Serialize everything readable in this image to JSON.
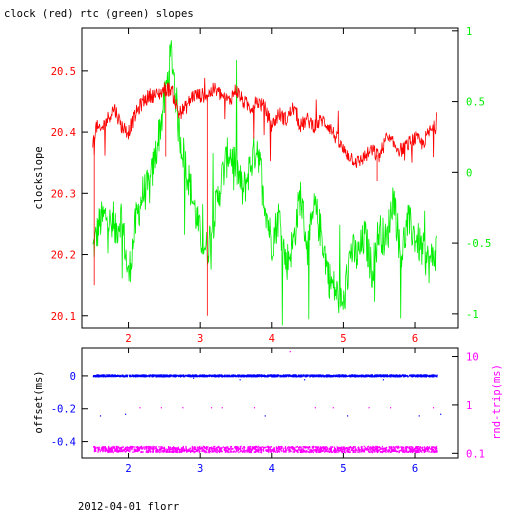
{
  "title": "clock (red) rtc (green) slopes",
  "footer": "2012-04-01 florr",
  "colors": {
    "frame": "#000000",
    "clock": "#ff0000",
    "rtc": "#00ee00",
    "offset": "#0000ff",
    "rndtrip": "#ff00ff"
  },
  "chart_data": [
    {
      "type": "line",
      "ylabel": "clockslope",
      "y2label": "",
      "xlim": [
        1.35,
        6.6
      ],
      "ylim": [
        20.08,
        20.57
      ],
      "y2lim": [
        -1.1,
        1.02
      ],
      "xticks": [
        2,
        3,
        4,
        5,
        6
      ],
      "yticks": [
        20.1,
        20.2,
        20.3,
        20.4,
        20.5
      ],
      "y2ticks": [
        -1,
        -0.5,
        0,
        0.5,
        1
      ],
      "x_tick_labels": [
        "2",
        "3",
        "4",
        "5",
        "6"
      ],
      "y_tick_labels": [
        "20.1",
        "20.2",
        "20.3",
        "20.4",
        "20.5"
      ],
      "y2_tick_labels": [
        "-1",
        "-0.5",
        "0",
        "0.5",
        "1"
      ],
      "series": [
        {
          "axis": "left",
          "x": [
            1.5,
            1.55,
            1.6,
            1.7,
            1.8,
            1.9,
            2.0,
            2.1,
            2.2,
            2.3,
            2.4,
            2.5,
            2.6,
            2.65,
            2.7,
            2.8,
            2.9,
            3.0,
            3.1,
            3.2,
            3.3,
            3.4,
            3.5,
            3.6,
            3.7,
            3.8,
            3.9,
            4.0,
            4.1,
            4.2,
            4.3,
            4.4,
            4.5,
            4.6,
            4.7,
            4.8,
            4.9,
            5.0,
            5.1,
            5.2,
            5.3,
            5.4,
            5.5,
            5.6,
            5.7,
            5.8,
            5.9,
            6.0,
            6.1,
            6.2,
            6.3
          ],
          "values": [
            20.38,
            20.41,
            20.4,
            20.42,
            20.44,
            20.41,
            20.4,
            20.43,
            20.45,
            20.46,
            20.46,
            20.47,
            20.47,
            20.45,
            20.43,
            20.44,
            20.46,
            20.46,
            20.46,
            20.47,
            20.46,
            20.45,
            20.47,
            20.45,
            20.44,
            20.45,
            20.44,
            20.41,
            20.43,
            20.42,
            20.44,
            20.41,
            20.42,
            20.41,
            20.42,
            20.41,
            20.39,
            20.37,
            20.36,
            20.35,
            20.36,
            20.37,
            20.36,
            20.39,
            20.38,
            20.37,
            20.38,
            20.39,
            20.38,
            20.4,
            20.41
          ]
        },
        {
          "axis": "right",
          "x": [
            1.5,
            1.55,
            1.6,
            1.7,
            1.8,
            1.9,
            2.0,
            2.1,
            2.2,
            2.3,
            2.4,
            2.5,
            2.6,
            2.65,
            2.7,
            2.8,
            2.9,
            3.0,
            3.1,
            3.2,
            3.3,
            3.4,
            3.5,
            3.6,
            3.7,
            3.8,
            3.9,
            4.0,
            4.1,
            4.2,
            4.3,
            4.4,
            4.5,
            4.6,
            4.7,
            4.8,
            4.9,
            5.0,
            5.1,
            5.2,
            5.3,
            5.4,
            5.5,
            5.6,
            5.7,
            5.8,
            5.9,
            6.0,
            6.1,
            6.2,
            6.3
          ],
          "values": [
            -0.55,
            -0.45,
            -0.35,
            -0.3,
            -0.45,
            -0.3,
            -0.75,
            -0.35,
            -0.15,
            -0.1,
            0.2,
            0.5,
            0.85,
            0.6,
            0.3,
            0.05,
            -0.2,
            -0.45,
            -0.55,
            -0.3,
            -0.05,
            0.15,
            0.05,
            -0.15,
            0.05,
            0.2,
            -0.2,
            -0.5,
            -0.3,
            -0.65,
            -0.5,
            -0.15,
            -0.55,
            -0.25,
            -0.45,
            -0.75,
            -0.85,
            -0.95,
            -0.55,
            -0.6,
            -0.45,
            -0.7,
            -0.4,
            -0.5,
            -0.15,
            -0.6,
            -0.35,
            -0.45,
            -0.55,
            -0.65,
            -0.55
          ]
        }
      ]
    },
    {
      "type": "scatter",
      "ylabel": "offset(ms)",
      "y2label": "rnd-trip(ms)",
      "xlim": [
        1.35,
        6.6
      ],
      "ylim": [
        -0.5,
        0.17
      ],
      "y2log": true,
      "y2lim": [
        0.08,
        15
      ],
      "xticks": [
        2,
        3,
        4,
        5,
        6
      ],
      "yticks": [
        -0.4,
        -0.2,
        0
      ],
      "y2ticks": [
        0.1,
        1,
        10
      ],
      "x_tick_labels": [
        "2",
        "3",
        "4",
        "5",
        "6"
      ],
      "y_tick_labels": [
        "-0.4",
        "-0.2",
        "0"
      ],
      "y2_tick_labels": [
        "0.1",
        "1",
        "10"
      ],
      "series": [
        {
          "axis": "left",
          "x_range": [
            1.5,
            6.3
          ],
          "level": 0.0,
          "spread": 0.01,
          "outliers_x": [
            1.6,
            1.95,
            2.9,
            3.55,
            3.9,
            4.45,
            5.05,
            5.55,
            6.05,
            6.35
          ],
          "outliers_y": [
            -0.24,
            -0.23,
            -0.01,
            -0.02,
            -0.24,
            -0.02,
            -0.24,
            -0.02,
            -0.24,
            -0.23
          ]
        },
        {
          "axis": "right",
          "x_range": [
            1.5,
            6.3
          ],
          "level": 0.12,
          "spread": 0.02,
          "outliers_x": [
            2.15,
            2.45,
            2.75,
            3.15,
            3.3,
            3.75,
            4.25,
            4.6,
            4.85,
            5.35,
            5.65,
            6.25
          ],
          "outliers_y": [
            0.9,
            0.9,
            0.9,
            0.9,
            0.9,
            0.9,
            13,
            0.9,
            0.9,
            0.9,
            0.9,
            0.9
          ]
        }
      ]
    }
  ]
}
